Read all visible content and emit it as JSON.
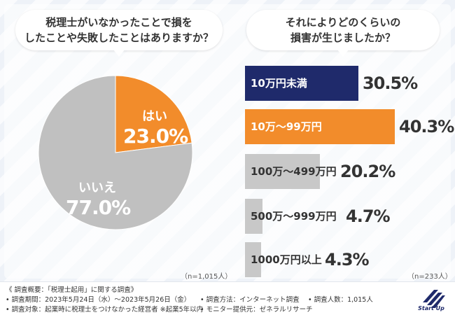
{
  "left_question": {
    "line1": "税理士がいなかったことで損を",
    "line2": "したことや失敗したことはありますか？"
  },
  "right_question": {
    "line1": "それによりどのくらいの",
    "line2": "損害が生じましたか？"
  },
  "left_n": "（n=1,015人）",
  "right_n": "（n=233人）",
  "chart_data": [
    {
      "type": "pie",
      "categories": [
        "はい",
        "いいえ"
      ],
      "values": [
        23.0,
        77.0
      ],
      "colors": [
        "#f28c2b",
        "#c0c0c0"
      ],
      "value_labels": [
        "23.0%",
        "77.0%"
      ]
    },
    {
      "type": "bar",
      "orientation": "horizontal",
      "categories": [
        "10万円未満",
        "10万〜99万円",
        "100万〜499万円",
        "500万〜999万円",
        "1000万円以上"
      ],
      "values": [
        30.5,
        40.3,
        20.2,
        4.7,
        4.3
      ],
      "value_labels": [
        "30.5%",
        "40.3%",
        "20.2%",
        "4.7%",
        "4.3%"
      ],
      "colors": [
        "#1f2a6b",
        "#f28c2b",
        "#c8c8c8",
        "#c8c8c8",
        "#c8c8c8"
      ],
      "label_colors": [
        "#ffffff",
        "#ffffff",
        "#333333",
        "#333333",
        "#333333"
      ],
      "xlim": [
        0,
        40.3
      ]
    }
  ],
  "footer": {
    "overview": "《 調査概要：「税理士起用」に関する調査》",
    "period": "• 調査期間：2023年5月24日（水）〜2023年5月26日（金）",
    "method": "• 調査方法：インターネット調査",
    "count": "• 調査人数：1,015人",
    "target": "• 調査対象：起業時に税理士をつけなかった経営者 ※起業5年以内",
    "monitor": "• モニター提供元：ゼネラルリサーチ"
  },
  "logo_text": "Start Up",
  "colors": {
    "navy": "#1f2a6b",
    "orange": "#f28c2b",
    "gray": "#c0c0c0"
  }
}
